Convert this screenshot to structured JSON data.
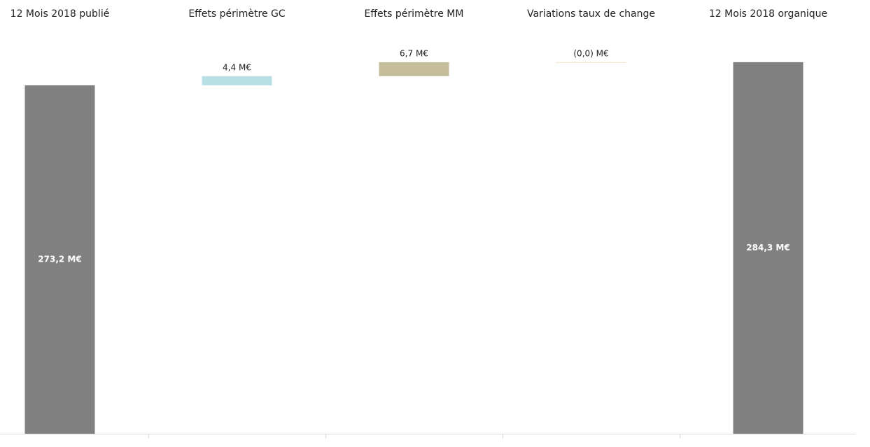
{
  "chart_data": {
    "type": "waterfall",
    "categories": [
      "12 Mois 2018 publié",
      "Effets périmètre GC",
      "Effets périmètre MM",
      "Variations taux de change",
      "12 Mois 2018 organique"
    ],
    "values": [
      273.2,
      4.4,
      6.7,
      0,
      284.3
    ],
    "value_labels": [
      "273,2 M€",
      "4,4 M€",
      "6,7 M€",
      "(0,0) M€",
      "284,3 M€"
    ],
    "colors": [
      "#808080",
      "#b7dfe6",
      "#c6bd9a",
      "#f3e6c0",
      "#808080"
    ],
    "ylim": [
      106,
      294
    ]
  }
}
